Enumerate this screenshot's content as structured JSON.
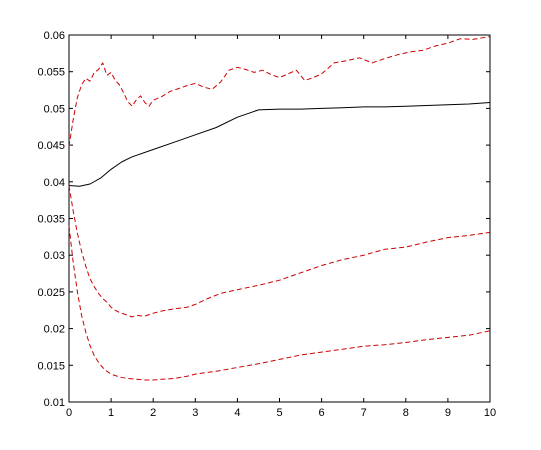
{
  "chart_data": {
    "type": "line",
    "xlim": [
      0,
      10
    ],
    "ylim": [
      0.01,
      0.06
    ],
    "x_ticks": [
      {
        "value": 0,
        "label": "0"
      },
      {
        "value": 1,
        "label": "1"
      },
      {
        "value": 2,
        "label": "2"
      },
      {
        "value": 3,
        "label": "3"
      },
      {
        "value": 4,
        "label": "4"
      },
      {
        "value": 5,
        "label": "5"
      },
      {
        "value": 6,
        "label": "6"
      },
      {
        "value": 7,
        "label": "7"
      },
      {
        "value": 8,
        "label": "8"
      },
      {
        "value": 9,
        "label": "9"
      },
      {
        "value": 10,
        "label": "10"
      }
    ],
    "y_ticks": [
      {
        "value": 0.01,
        "label": "0.01"
      },
      {
        "value": 0.015,
        "label": "0.015"
      },
      {
        "value": 0.02,
        "label": "0.02"
      },
      {
        "value": 0.025,
        "label": "0.025"
      },
      {
        "value": 0.03,
        "label": "0.03"
      },
      {
        "value": 0.035,
        "label": "0.035"
      },
      {
        "value": 0.04,
        "label": "0.04"
      },
      {
        "value": 0.045,
        "label": "0.045"
      },
      {
        "value": 0.05,
        "label": "0.05"
      },
      {
        "value": 0.055,
        "label": "0.055"
      },
      {
        "value": 0.06,
        "label": "0.06"
      }
    ],
    "grid": false,
    "box": true,
    "series": [
      {
        "style": "solid",
        "color": "#000000",
        "x": [
          0,
          0.25,
          0.5,
          0.75,
          1.0,
          1.25,
          1.5,
          2.0,
          2.5,
          3.0,
          3.5,
          4.0,
          4.5,
          5.0,
          5.5,
          6.0,
          6.5,
          7.0,
          7.5,
          8.0,
          8.5,
          9.0,
          9.5,
          10.0
        ],
        "y": [
          0.0395,
          0.0394,
          0.0397,
          0.0405,
          0.0417,
          0.0427,
          0.0434,
          0.0444,
          0.0454,
          0.0464,
          0.0474,
          0.0488,
          0.0498,
          0.0499,
          0.0499,
          0.05,
          0.0501,
          0.0502,
          0.0502,
          0.0503,
          0.0504,
          0.0505,
          0.0506,
          0.0508
        ]
      },
      {
        "style": "dashed",
        "color": "#cc0000",
        "x": [
          0,
          0.1,
          0.2,
          0.3,
          0.4,
          0.5,
          0.6,
          0.7,
          0.8,
          0.9,
          1.0,
          1.1,
          1.2,
          1.3,
          1.4,
          1.5,
          1.6,
          1.7,
          1.8,
          1.9,
          2.0,
          2.2,
          2.4,
          2.6,
          2.8,
          3.0,
          3.2,
          3.4,
          3.6,
          3.8,
          4.0,
          4.2,
          4.4,
          4.6,
          4.8,
          5.0,
          5.2,
          5.4,
          5.6,
          5.8,
          6.0,
          6.3,
          6.6,
          6.9,
          7.2,
          7.5,
          7.8,
          8.1,
          8.4,
          8.7,
          9.0,
          9.3,
          9.6,
          10.0
        ],
        "y": [
          0.0448,
          0.0485,
          0.0515,
          0.0532,
          0.0541,
          0.0537,
          0.0549,
          0.0553,
          0.0562,
          0.0545,
          0.0549,
          0.0538,
          0.0532,
          0.0521,
          0.0509,
          0.0503,
          0.0512,
          0.0517,
          0.0508,
          0.0503,
          0.0511,
          0.0516,
          0.0523,
          0.0527,
          0.0531,
          0.0534,
          0.0529,
          0.0526,
          0.0536,
          0.0552,
          0.0556,
          0.0553,
          0.0549,
          0.0552,
          0.0546,
          0.0542,
          0.0547,
          0.0552,
          0.0538,
          0.0542,
          0.0547,
          0.0562,
          0.0565,
          0.0569,
          0.0562,
          0.0568,
          0.0573,
          0.0577,
          0.0579,
          0.0585,
          0.0589,
          0.0595,
          0.0594,
          0.0598
        ]
      },
      {
        "style": "dashed",
        "color": "#cc0000",
        "x": [
          0,
          0.1,
          0.2,
          0.3,
          0.4,
          0.5,
          0.6,
          0.7,
          0.8,
          0.9,
          1.0,
          1.1,
          1.2,
          1.3,
          1.4,
          1.5,
          1.6,
          1.8,
          2.0,
          2.2,
          2.5,
          2.8,
          3.0,
          3.3,
          3.6,
          4.0,
          4.5,
          5.0,
          5.5,
          6.0,
          6.5,
          7.0,
          7.5,
          8.0,
          8.5,
          9.0,
          9.5,
          10.0
        ],
        "y": [
          0.0395,
          0.036,
          0.033,
          0.0305,
          0.0285,
          0.0268,
          0.0257,
          0.0248,
          0.0241,
          0.0236,
          0.0229,
          0.0225,
          0.0222,
          0.022,
          0.0218,
          0.0216,
          0.0218,
          0.0217,
          0.0221,
          0.0224,
          0.0227,
          0.0229,
          0.0233,
          0.0241,
          0.0248,
          0.0253,
          0.0259,
          0.0266,
          0.0276,
          0.0286,
          0.0294,
          0.03,
          0.0308,
          0.0311,
          0.0318,
          0.0324,
          0.0327,
          0.0331
        ]
      },
      {
        "style": "dashed",
        "color": "#cc0000",
        "x": [
          0,
          0.1,
          0.2,
          0.3,
          0.4,
          0.5,
          0.6,
          0.7,
          0.8,
          0.9,
          1.0,
          1.2,
          1.4,
          1.6,
          1.8,
          2.0,
          2.2,
          2.5,
          2.8,
          3.0,
          3.5,
          4.0,
          4.5,
          5.0,
          5.5,
          6.0,
          6.5,
          7.0,
          7.5,
          8.0,
          8.5,
          9.0,
          9.5,
          10.0
        ],
        "y": [
          0.034,
          0.029,
          0.025,
          0.0218,
          0.0195,
          0.0177,
          0.0163,
          0.0154,
          0.0147,
          0.0142,
          0.0138,
          0.0134,
          0.0132,
          0.0131,
          0.013,
          0.013,
          0.0131,
          0.0132,
          0.0135,
          0.0138,
          0.0142,
          0.0147,
          0.0152,
          0.0158,
          0.0164,
          0.0168,
          0.0172,
          0.0176,
          0.0178,
          0.0181,
          0.0185,
          0.0188,
          0.0191,
          0.0197
        ]
      }
    ]
  }
}
